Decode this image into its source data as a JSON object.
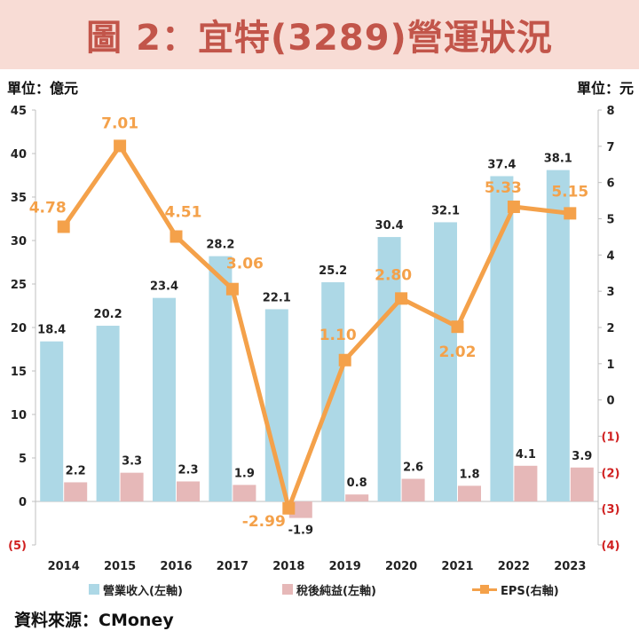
{
  "page": {
    "title": "圖 2：宜特(3289)營運狀況",
    "unit_left": "單位：億元",
    "unit_right": "單位：元",
    "source": "資料來源：CMoney"
  },
  "chart_data": {
    "type": "bar",
    "categories": [
      "2014",
      "2015",
      "2016",
      "2017",
      "2018",
      "2019",
      "2020",
      "2021",
      "2022",
      "2023"
    ],
    "series": [
      {
        "name": "營業收入(左軸)",
        "type": "bar",
        "axis": "left",
        "color": "#add8e6",
        "values": [
          18.4,
          20.2,
          23.4,
          28.2,
          22.1,
          25.2,
          30.4,
          32.1,
          37.4,
          38.1
        ],
        "labels": [
          "18.4",
          "20.2",
          "23.4",
          "28.2",
          "22.1",
          "25.2",
          "30.4",
          "32.1",
          "37.4",
          "38.1"
        ]
      },
      {
        "name": "稅後純益(左軸)",
        "type": "bar",
        "axis": "left",
        "color": "#e6b8b8",
        "values": [
          2.2,
          3.3,
          2.3,
          1.9,
          -1.9,
          0.8,
          2.6,
          1.8,
          4.1,
          3.9
        ],
        "labels": [
          "2.2",
          "3.3",
          "2.3",
          "1.9",
          "-1.9",
          "0.8",
          "2.6",
          "1.8",
          "4.1",
          "3.9"
        ]
      },
      {
        "name": "EPS(右軸)",
        "type": "line",
        "axis": "right",
        "color": "#f4a14a",
        "values": [
          4.78,
          7.01,
          4.51,
          3.06,
          -2.99,
          1.1,
          2.8,
          2.02,
          5.33,
          5.15
        ],
        "labels": [
          "4.78",
          "7.01",
          "4.51",
          "3.06",
          "-2.99",
          "1.10",
          "2.80",
          "2.02",
          "5.33",
          "5.15"
        ]
      }
    ],
    "y_left": {
      "min": -5,
      "max": 45,
      "ticks": [
        -5,
        0,
        5,
        10,
        15,
        20,
        25,
        30,
        35,
        40,
        45
      ],
      "tick_labels": [
        "(5)",
        "0",
        "5",
        "10",
        "15",
        "20",
        "25",
        "30",
        "35",
        "40",
        "45"
      ]
    },
    "y_right": {
      "min": -4,
      "max": 8,
      "ticks": [
        -4,
        -3,
        -2,
        -1,
        0,
        1,
        2,
        3,
        4,
        5,
        6,
        7,
        8
      ],
      "tick_labels": [
        "(4)",
        "(3)",
        "(2)",
        "(1)",
        "0",
        "1",
        "2",
        "3",
        "4",
        "5",
        "6",
        "7",
        "8"
      ]
    },
    "negative_tick_color": "#d02020",
    "grid": false,
    "legend": "bottom"
  }
}
